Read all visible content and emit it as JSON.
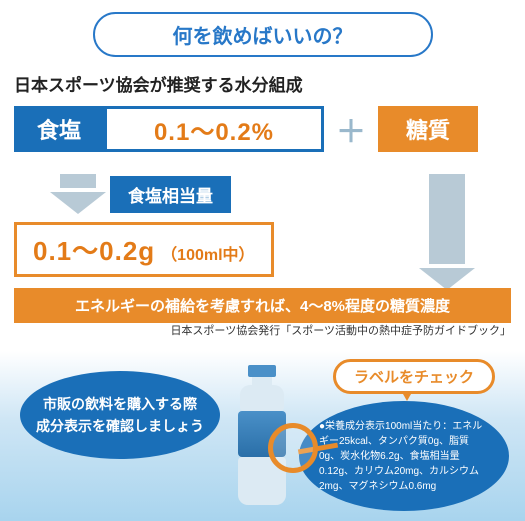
{
  "title": "何を飲めばいいの？",
  "subtitle": "日本スポーツ協会が推奨する水分組成",
  "salt_label": "食塩",
  "salt_value": "0.1〜0.2%",
  "plus": "＋",
  "sugar_label": "糖質",
  "salt_eq": "食塩相当量",
  "amount_main": "0.1〜0.2g",
  "amount_unit": "（100ml中）",
  "orange_bar": "エネルギーの補給を考慮すれば、4〜8%程度の糖質濃度",
  "source": "日本スポーツ協会発行「スポーツ活動中の熱中症予防ガイドブック」",
  "bubble1_l1": "市販の飲料を購入する際",
  "bubble1_l2": "成分表示を確認しましょう",
  "label_check": "ラベルをチェック",
  "bubble2": "●栄養成分表示100ml当たり：エネルギー25kcal、タンパク質0g、脂質0g、炭水化物6.2g、食塩相当量0.12g、カリウム20mg、カルシウム2mg、マグネシウム0.6mg",
  "colors": {
    "blue": "#1a6fb8",
    "orange": "#e88b2a",
    "orange_text": "#e37b18",
    "arrow_gray": "#b8cad6",
    "title_blue": "#2878c8"
  }
}
